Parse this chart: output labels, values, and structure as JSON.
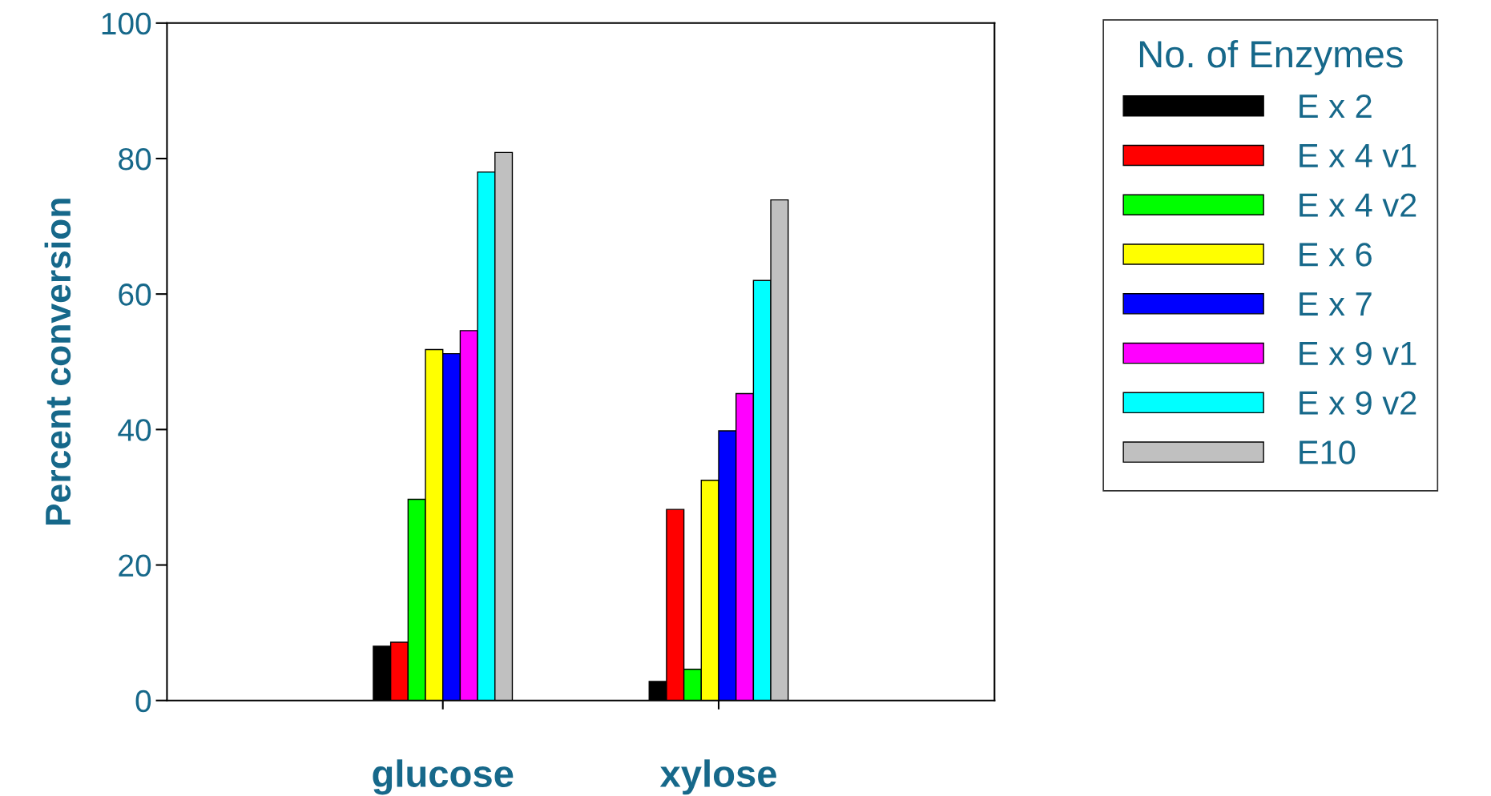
{
  "chart_data": {
    "type": "bar",
    "ylabel": "Percent conversion",
    "legend_title": "No. of Enzymes",
    "categories": [
      "glucose",
      "xylose"
    ],
    "series": [
      {
        "name": "E x 2",
        "color": "#000000",
        "values": [
          8.0,
          2.8
        ]
      },
      {
        "name": "E x 4 v1",
        "color": "#ff0000",
        "values": [
          8.6,
          28.2
        ]
      },
      {
        "name": "E x 4 v2",
        "color": "#00ff00",
        "values": [
          29.7,
          4.6
        ]
      },
      {
        "name": "E x 6",
        "color": "#ffff00",
        "values": [
          51.8,
          32.5
        ]
      },
      {
        "name": "E x 7",
        "color": "#0000ff",
        "values": [
          51.2,
          39.8
        ]
      },
      {
        "name": "E x 9 v1",
        "color": "#ff00ff",
        "values": [
          54.6,
          45.3
        ]
      },
      {
        "name": "E x 9 v2",
        "color": "#00ffff",
        "values": [
          78.0,
          62.0
        ]
      },
      {
        "name": "E10",
        "color": "#c0c0c0",
        "values": [
          80.9,
          73.9
        ]
      }
    ],
    "ylim": [
      0,
      100
    ],
    "yticks": [
      0,
      20,
      40,
      60,
      80,
      100
    ],
    "grid": false,
    "legend": "right"
  }
}
